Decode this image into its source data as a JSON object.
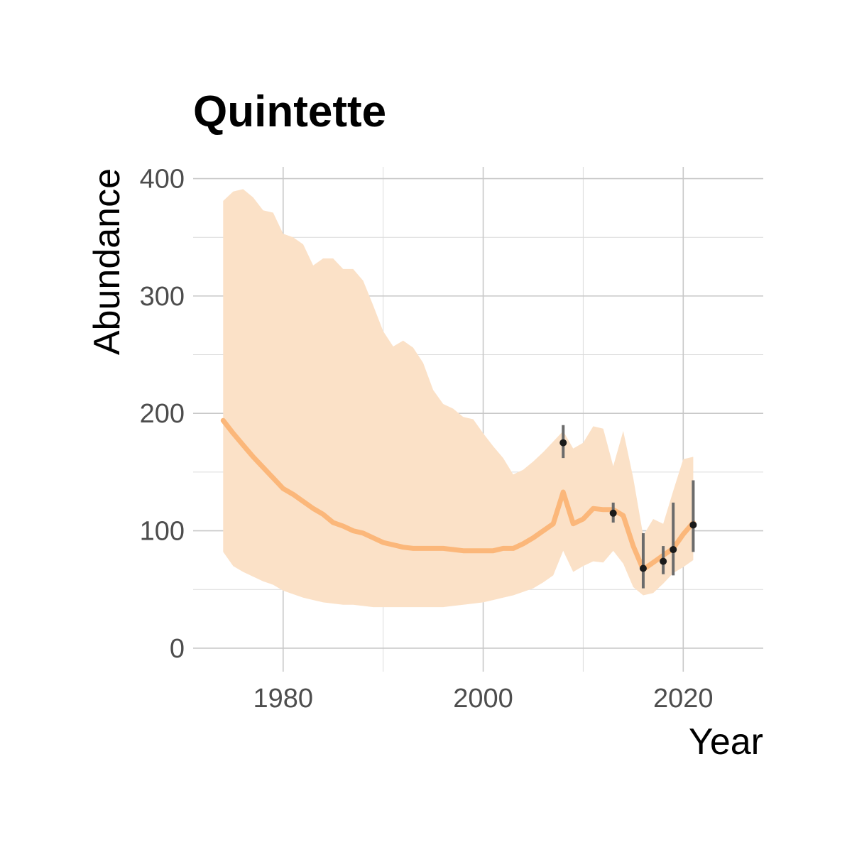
{
  "chart_data": {
    "type": "line",
    "title": "Quintette",
    "xlabel": "Year",
    "ylabel": "Abundance",
    "xlim": [
      1971,
      2028
    ],
    "ylim": [
      -20,
      410
    ],
    "x_ticks": [
      1980,
      2000,
      2020
    ],
    "x_tick_labels": [
      "1980",
      "2000",
      "2020"
    ],
    "y_ticks": [
      0,
      100,
      200,
      300,
      400
    ],
    "y_tick_labels": [
      "0",
      "100",
      "200",
      "300",
      "400"
    ],
    "grid": true,
    "legend": "none",
    "colors": {
      "trend_line": "#fbb77a",
      "ribbon": "#fbe1c7",
      "points": "#1a1a1a",
      "error_bars": "#6b6b6b",
      "grid": "#c8c8c8"
    },
    "series": [
      {
        "type": "line",
        "x": [
          1974,
          1975,
          1976,
          1977,
          1978,
          1979,
          1980,
          1981,
          1982,
          1983,
          1984,
          1985,
          1986,
          1987,
          1988,
          1989,
          1990,
          1991,
          1992,
          1993,
          1994,
          1995,
          1996,
          1997,
          1998,
          1999,
          2000,
          2001,
          2002,
          2003,
          2004,
          2005,
          2006,
          2007,
          2008,
          2009,
          2010,
          2011,
          2012,
          2013,
          2014,
          2015,
          2016,
          2017,
          2018,
          2019,
          2020,
          2021
        ],
        "y": [
          194,
          183,
          173,
          163,
          154,
          145,
          136,
          131,
          125,
          119,
          114,
          107,
          104,
          100,
          98,
          94,
          90,
          88,
          86,
          85,
          85,
          85,
          85,
          84,
          83,
          83,
          83,
          83,
          85,
          85,
          89,
          94,
          100,
          106,
          133,
          106,
          110,
          119,
          118,
          118,
          113,
          87,
          67,
          73,
          79,
          85,
          97,
          107
        ]
      },
      {
        "type": "ribbon",
        "x": [
          1974,
          1975,
          1976,
          1977,
          1978,
          1979,
          1980,
          1981,
          1982,
          1983,
          1984,
          1985,
          1986,
          1987,
          1988,
          1989,
          1990,
          1991,
          1992,
          1993,
          1994,
          1995,
          1996,
          1997,
          1998,
          1999,
          2000,
          2001,
          2002,
          2003,
          2004,
          2005,
          2006,
          2007,
          2008,
          2009,
          2010,
          2011,
          2012,
          2013,
          2014,
          2015,
          2016,
          2017,
          2018,
          2019,
          2020,
          2021
        ],
        "lower": [
          82,
          70,
          65,
          61,
          57,
          54,
          49,
          46,
          43,
          41,
          39,
          38,
          37,
          37,
          36,
          35,
          35,
          35,
          35,
          35,
          35,
          35,
          35,
          36,
          37,
          38,
          39,
          41,
          43,
          45,
          48,
          51,
          56,
          62,
          83,
          65,
          70,
          74,
          73,
          83,
          72,
          52,
          45,
          47,
          55,
          64,
          69,
          75
        ],
        "upper": [
          381,
          389,
          391,
          384,
          373,
          371,
          353,
          350,
          344,
          326,
          332,
          332,
          323,
          323,
          313,
          292,
          270,
          257,
          262,
          256,
          243,
          220,
          208,
          204,
          197,
          195,
          183,
          172,
          162,
          148,
          152,
          159,
          167,
          176,
          185,
          170,
          175,
          189,
          187,
          155,
          185,
          145,
          96,
          110,
          106,
          134,
          161,
          163
        ]
      },
      {
        "type": "points",
        "x": [
          2008,
          2013,
          2016,
          2018,
          2019,
          2021
        ],
        "y": [
          175,
          115,
          68,
          74,
          84,
          105
        ],
        "y_low": [
          162,
          107,
          51,
          63,
          62,
          82
        ],
        "y_high": [
          190,
          124,
          98,
          87,
          124,
          143
        ]
      }
    ]
  }
}
